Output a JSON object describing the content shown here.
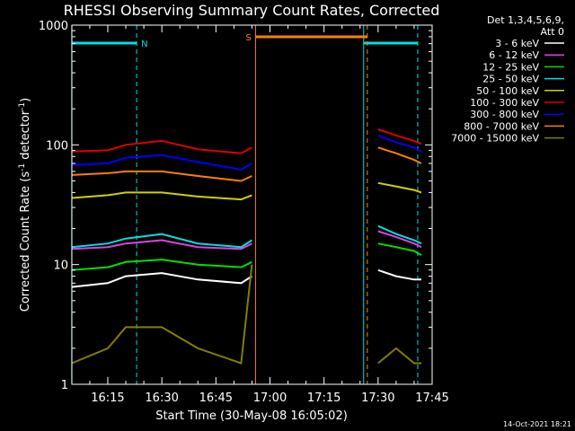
{
  "chart_data": {
    "type": "line",
    "title": "RHESSI Observing Summary Count Rates, Corrected",
    "xlabel": "Start Time (30-May-08 16:05:02)",
    "ylabel": "Corrected Count Rate (s",
    "ylabel_sup1": "-1",
    "ylabel_mid": " detector",
    "ylabel_sup2": "-1",
    "ylabel_end": ")",
    "y_scale": "log",
    "ylim": [
      1,
      1000
    ],
    "xlim": [
      "16:05:02",
      "17:45:00"
    ],
    "x_ticks": [
      "16:15",
      "16:30",
      "16:45",
      "17:00",
      "17:15",
      "17:30",
      "17:45"
    ],
    "y_ticks": [
      "1",
      "10",
      "100",
      "1000"
    ],
    "legend": {
      "header": [
        "Det 1,3,4,5,6,9,",
        "Att 0"
      ],
      "position": "right"
    },
    "series": [
      {
        "name": "3 - 6 keV",
        "color": "#ffffff",
        "x": [
          "16:05",
          "16:15",
          "16:20",
          "16:30",
          "16:40",
          "16:52",
          "16:55",
          "17:30",
          "17:35",
          "17:40",
          "17:42"
        ],
        "y": [
          6.5,
          7,
          8,
          8.5,
          7.5,
          7,
          8,
          9,
          8,
          7.5,
          7.5
        ]
      },
      {
        "name": "6 - 12 keV",
        "color": "#e040e0",
        "x": [
          "16:05",
          "16:15",
          "16:20",
          "16:30",
          "16:40",
          "16:52",
          "16:55",
          "17:30",
          "17:35",
          "17:40",
          "17:42"
        ],
        "y": [
          13.5,
          14,
          15,
          16,
          14,
          13.5,
          15,
          19,
          17,
          15,
          14
        ]
      },
      {
        "name": "12 - 25 keV",
        "color": "#00e000",
        "x": [
          "16:05",
          "16:15",
          "16:20",
          "16:30",
          "16:40",
          "16:52",
          "16:55",
          "17:30",
          "17:35",
          "17:40",
          "17:42"
        ],
        "y": [
          9,
          9.5,
          10.5,
          11,
          10,
          9.5,
          10.5,
          15,
          14,
          13,
          12
        ]
      },
      {
        "name": "25 - 50 keV",
        "color": "#00e0e0",
        "x": [
          "16:05",
          "16:15",
          "16:20",
          "16:30",
          "16:40",
          "16:52",
          "16:55",
          "17:30",
          "17:35",
          "17:40",
          "17:42"
        ],
        "y": [
          14,
          15,
          16.5,
          18,
          15,
          14,
          16,
          21,
          18,
          16,
          15
        ]
      },
      {
        "name": "50 - 100 keV",
        "color": "#d0d000",
        "x": [
          "16:05",
          "16:15",
          "16:20",
          "16:30",
          "16:40",
          "16:52",
          "16:55",
          "17:30",
          "17:35",
          "17:40",
          "17:42"
        ],
        "y": [
          36,
          38,
          40,
          40,
          37,
          35,
          38,
          48,
          45,
          42,
          40
        ]
      },
      {
        "name": "100 - 300 keV",
        "color": "#e00000",
        "x": [
          "16:05",
          "16:15",
          "16:20",
          "16:30",
          "16:40",
          "16:52",
          "16:55",
          "17:30",
          "17:35",
          "17:40",
          "17:42"
        ],
        "y": [
          88,
          90,
          100,
          108,
          92,
          85,
          95,
          135,
          120,
          108,
          102
        ]
      },
      {
        "name": "300 - 800 keV",
        "color": "#0000ff",
        "x": [
          "16:05",
          "16:15",
          "16:20",
          "16:30",
          "16:40",
          "16:52",
          "16:55",
          "17:30",
          "17:35",
          "17:40",
          "17:42"
        ],
        "y": [
          68,
          70,
          78,
          82,
          72,
          62,
          70,
          120,
          105,
          95,
          88
        ]
      },
      {
        "name": "800 - 7000 keV",
        "color": "#ff8000",
        "x": [
          "16:05",
          "16:15",
          "16:20",
          "16:30",
          "16:40",
          "16:52",
          "16:55",
          "17:30",
          "17:35",
          "17:40",
          "17:42"
        ],
        "y": [
          56,
          58,
          60,
          60,
          55,
          50,
          55,
          95,
          85,
          75,
          70
        ]
      },
      {
        "name": "7000 - 15000 keV",
        "color": "#808000",
        "x": [
          "16:05",
          "16:15",
          "16:20",
          "16:30",
          "16:40",
          "16:52",
          "16:55",
          "17:30",
          "17:35",
          "17:40",
          "17:42"
        ],
        "y": [
          1.5,
          2,
          3,
          3,
          2,
          1.5,
          10,
          1.5,
          2,
          1.5,
          1.5
        ]
      }
    ],
    "annotations": {
      "night_label": "N",
      "saa_label": "S",
      "night_color": "#00e0e0",
      "saa_color": "#ff8000",
      "night_intervals": [
        [
          "16:05",
          "16:23"
        ],
        [
          "17:26",
          "17:41"
        ]
      ],
      "saa_intervals": [
        [
          "16:56",
          "17:27"
        ]
      ]
    }
  },
  "footer": {
    "timestamp": "14-Oct-2021 18:21"
  }
}
